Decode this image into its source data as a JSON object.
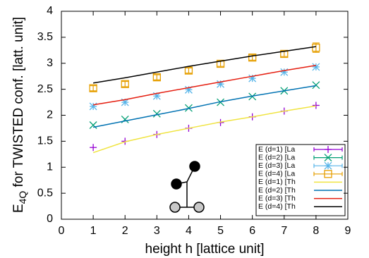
{
  "chart_data": {
    "type": "line",
    "xlabel": "height h [lattice unit]",
    "ylabel": {
      "main": "E",
      "sub": "4Q",
      "rest": " for TWISTED conf. [latt. unit]"
    },
    "xlim": [
      0,
      9
    ],
    "xticks": [
      0,
      1,
      2,
      3,
      4,
      5,
      6,
      7,
      8,
      9
    ],
    "ylim": [
      0,
      4
    ],
    "yticks": [
      0,
      0.5,
      1,
      1.5,
      2,
      2.5,
      3,
      3.5,
      4
    ],
    "legend": "lower right",
    "series": [
      {
        "name": "E (d=1) [La",
        "color": "#9400d3",
        "style": "points",
        "marker": "plus",
        "x": [
          1,
          2,
          3,
          4,
          5,
          6,
          7,
          8
        ],
        "values": [
          1.38,
          1.5,
          1.63,
          1.75,
          1.86,
          1.97,
          2.08,
          2.19
        ]
      },
      {
        "name": "E (d=2) [La",
        "color": "#009e73",
        "style": "points",
        "marker": "cross",
        "x": [
          1,
          2,
          3,
          4,
          5,
          6,
          7,
          8
        ],
        "values": [
          1.81,
          1.92,
          2.03,
          2.14,
          2.25,
          2.36,
          2.47,
          2.58
        ]
      },
      {
        "name": "E (d=3) [La",
        "color": "#56b4e9",
        "style": "points",
        "marker": "star",
        "x": [
          1,
          2,
          3,
          4,
          5,
          6,
          7,
          8
        ],
        "values": [
          2.17,
          2.25,
          2.37,
          2.49,
          2.6,
          2.71,
          2.83,
          2.93
        ]
      },
      {
        "name": "E (d=4) [La",
        "color": "#e69f00",
        "style": "points",
        "marker": "square",
        "x": [
          1,
          2,
          3,
          4,
          5,
          6,
          7,
          8
        ],
        "values": [
          2.52,
          2.6,
          2.73,
          2.86,
          2.99,
          3.11,
          3.18,
          3.3
        ],
        "errors": [
          0.05,
          0.05,
          0.05,
          0.05,
          0.05,
          0.05,
          0.05,
          0.09
        ]
      },
      {
        "name": "E (d=1) [Th",
        "color": "#f0e442",
        "style": "line",
        "x": [
          1,
          2,
          3,
          4,
          5,
          6,
          7,
          8
        ],
        "values": [
          1.28,
          1.49,
          1.63,
          1.75,
          1.87,
          1.97,
          2.08,
          2.18
        ]
      },
      {
        "name": "E (d=2) [Th",
        "color": "#0072b2",
        "style": "line",
        "x": [
          1,
          2,
          3,
          4,
          5,
          6,
          7,
          8
        ],
        "values": [
          1.77,
          1.89,
          2.01,
          2.13,
          2.26,
          2.37,
          2.47,
          2.57
        ]
      },
      {
        "name": "E (d=3) [Th",
        "color": "#e51e10",
        "style": "line",
        "x": [
          1,
          2,
          3,
          4,
          5,
          6,
          7,
          8
        ],
        "values": [
          2.2,
          2.3,
          2.42,
          2.53,
          2.64,
          2.75,
          2.86,
          2.96
        ]
      },
      {
        "name": "E (d=4) [Th",
        "color": "#000000",
        "style": "line",
        "x": [
          1,
          2,
          3,
          4,
          5,
          6,
          7,
          8
        ],
        "values": [
          2.62,
          2.72,
          2.83,
          2.94,
          3.04,
          3.14,
          3.23,
          3.32
        ]
      }
    ]
  }
}
